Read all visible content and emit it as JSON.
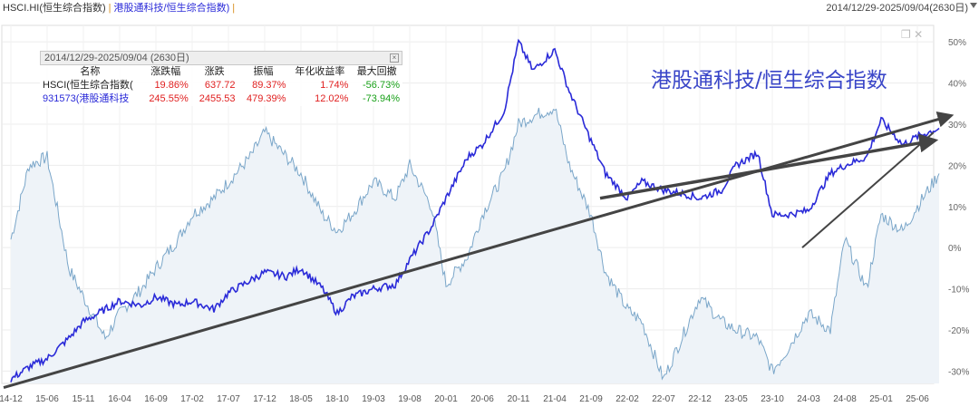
{
  "header": {
    "series1_label": "HSCI.HI(恒生综合指数)",
    "separator": "|",
    "series2_label": "港股通科技/恒生综合指数)",
    "trailing_separator": "|",
    "date_range": "2014/12/29-2025/09/04(2630日)"
  },
  "stats_panel": {
    "title": "2014/12/29-2025/09/04 (2630日)",
    "columns": [
      "名称",
      "涨跌幅",
      "涨跌",
      "振幅",
      "年化收益率",
      "最大回撤"
    ],
    "rows": [
      {
        "name": "HSCI(恒生综合指数(",
        "change_pct": "19.86%",
        "change": "637.72",
        "amplitude": "89.37%",
        "annualized": "1.74%",
        "max_drawdown": "-56.73%"
      },
      {
        "name": "931573(港股通科技",
        "change_pct": "245.55%",
        "change": "2455.53",
        "amplitude": "479.39%",
        "annualized": "12.02%",
        "max_drawdown": "-73.94%"
      }
    ]
  },
  "chart_data": {
    "type": "line",
    "annotation": "港股通科技/恒生综合指数",
    "x_ticks": [
      "14-12",
      "15-06",
      "15-11",
      "16-04",
      "16-09",
      "17-02",
      "17-07",
      "17-12",
      "18-05",
      "18-10",
      "19-03",
      "19-08",
      "20-01",
      "20-06",
      "20-11",
      "21-04",
      "21-09",
      "22-02",
      "22-07",
      "22-12",
      "23-05",
      "23-10",
      "24-03",
      "24-08",
      "25-01",
      "25-06"
    ],
    "y_ticks": [
      "50%",
      "40%",
      "30%",
      "20%",
      "10%",
      "0%",
      "-10%",
      "-20%",
      "-30%"
    ],
    "ylim": [
      -33,
      54
    ],
    "grid": true,
    "series": [
      {
        "color": "#2a2ad8",
        "x": [
          "14-12",
          "15-03",
          "15-06",
          "15-09",
          "15-11",
          "16-02",
          "16-04",
          "16-07",
          "16-09",
          "16-12",
          "17-02",
          "17-05",
          "17-07",
          "17-10",
          "17-12",
          "18-03",
          "18-05",
          "18-08",
          "18-10",
          "18-12",
          "19-03",
          "19-06",
          "19-08",
          "19-11",
          "20-01",
          "20-04",
          "20-06",
          "20-09",
          "20-11",
          "21-01",
          "21-04",
          "21-06",
          "21-09",
          "21-11",
          "22-02",
          "22-04",
          "22-07",
          "22-10",
          "22-12",
          "23-03",
          "23-05",
          "23-08",
          "23-10",
          "23-12",
          "24-03",
          "24-06",
          "24-08",
          "24-11",
          "25-01",
          "25-04",
          "25-06",
          "25-09"
        ],
        "values": [
          -32,
          -29,
          -27,
          -22,
          -18,
          -15,
          -13,
          -14,
          -12,
          -14,
          -13,
          -15,
          -11,
          -8,
          -6,
          -7,
          -5,
          -10,
          -16,
          -12,
          -10,
          -9,
          -3,
          5,
          12,
          22,
          25,
          33,
          50,
          43,
          48,
          38,
          26,
          18,
          12,
          16,
          14,
          13,
          12,
          14,
          20,
          23,
          8,
          8,
          9,
          18,
          20,
          22,
          31,
          25,
          27,
          29
        ]
      },
      {
        "color": "#7aa6c9",
        "x": [
          "14-12",
          "15-03",
          "15-06",
          "15-09",
          "15-11",
          "16-02",
          "16-04",
          "16-07",
          "16-09",
          "16-12",
          "17-02",
          "17-05",
          "17-07",
          "17-10",
          "17-12",
          "18-03",
          "18-05",
          "18-08",
          "18-10",
          "18-12",
          "19-03",
          "19-06",
          "19-08",
          "19-11",
          "20-01",
          "20-04",
          "20-06",
          "20-09",
          "20-11",
          "21-01",
          "21-04",
          "21-06",
          "21-09",
          "21-11",
          "22-02",
          "22-04",
          "22-07",
          "22-10",
          "22-12",
          "23-03",
          "23-05",
          "23-08",
          "23-10",
          "23-12",
          "24-03",
          "24-06",
          "24-08",
          "24-11",
          "25-01",
          "25-04",
          "25-06",
          "25-09"
        ],
        "values": [
          2,
          20,
          22,
          -5,
          -12,
          -22,
          -16,
          -10,
          -5,
          2,
          8,
          12,
          16,
          22,
          28,
          22,
          18,
          8,
          4,
          8,
          16,
          12,
          20,
          10,
          -9,
          -2,
          8,
          18,
          30,
          32,
          34,
          20,
          8,
          -6,
          -15,
          -18,
          -32,
          -20,
          -12,
          -18,
          -20,
          -22,
          -30,
          -25,
          -16,
          -20,
          2,
          -10,
          8,
          4,
          10,
          18
        ]
      }
    ]
  }
}
